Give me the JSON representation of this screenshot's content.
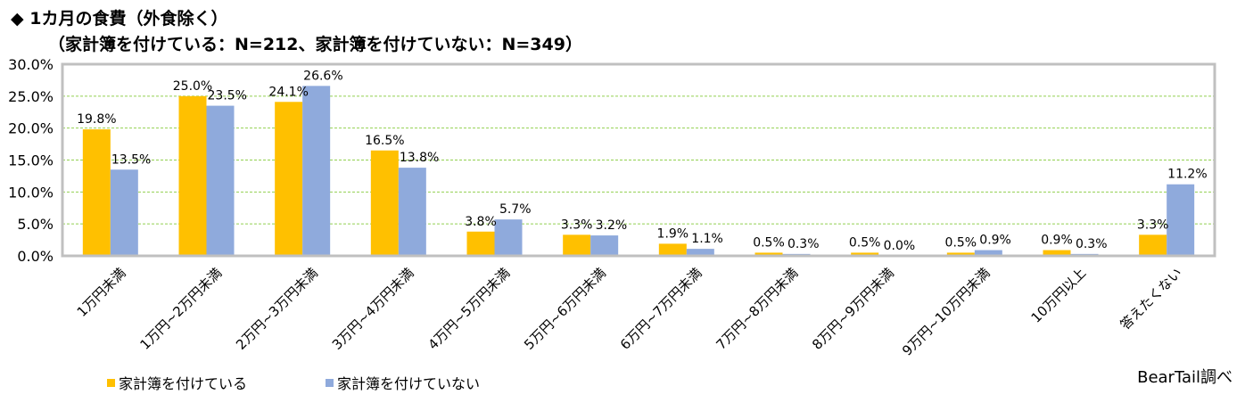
{
  "title": {
    "line1": "◆ 1カ月の食費（外食除く）",
    "line2": "（家計簿を付けている：N=212、家計簿を付けていない：N=349）"
  },
  "credit": "BearTail調べ",
  "colors": {
    "series1": "#FFC000",
    "series2": "#8FAADC",
    "grid": "#92D050",
    "frame": "#C0C0C0"
  },
  "chart_data": {
    "type": "bar",
    "categories": [
      "1万円未満",
      "1万円~2万円未満",
      "2万円~3万円未満",
      "3万円~4万円未満",
      "4万円~5万円未満",
      "5万円~6万円未満",
      "6万円~7万円未満",
      "7万円~8万円未満",
      "8万円~9万円未満",
      "9万円~10万円未満",
      "10万円以上",
      "答えたくない"
    ],
    "series": [
      {
        "name": "家計簿を付けている",
        "values": [
          19.8,
          25.0,
          24.1,
          16.5,
          3.8,
          3.3,
          1.9,
          0.5,
          0.5,
          0.5,
          0.9,
          3.3
        ]
      },
      {
        "name": "家計簿を付けていない",
        "values": [
          13.5,
          23.5,
          26.6,
          13.8,
          5.7,
          3.2,
          1.1,
          0.3,
          0.0,
          0.9,
          0.3,
          11.2
        ]
      }
    ],
    "ylim": [
      0,
      30
    ],
    "yticks": [
      0,
      5,
      10,
      15,
      20,
      25,
      30
    ],
    "ytick_labels": [
      "0.0%",
      "5.0%",
      "10.0%",
      "15.0%",
      "20.0%",
      "25.0%",
      "30.0%"
    ],
    "grid": true,
    "legend_position": "bottom-left"
  }
}
